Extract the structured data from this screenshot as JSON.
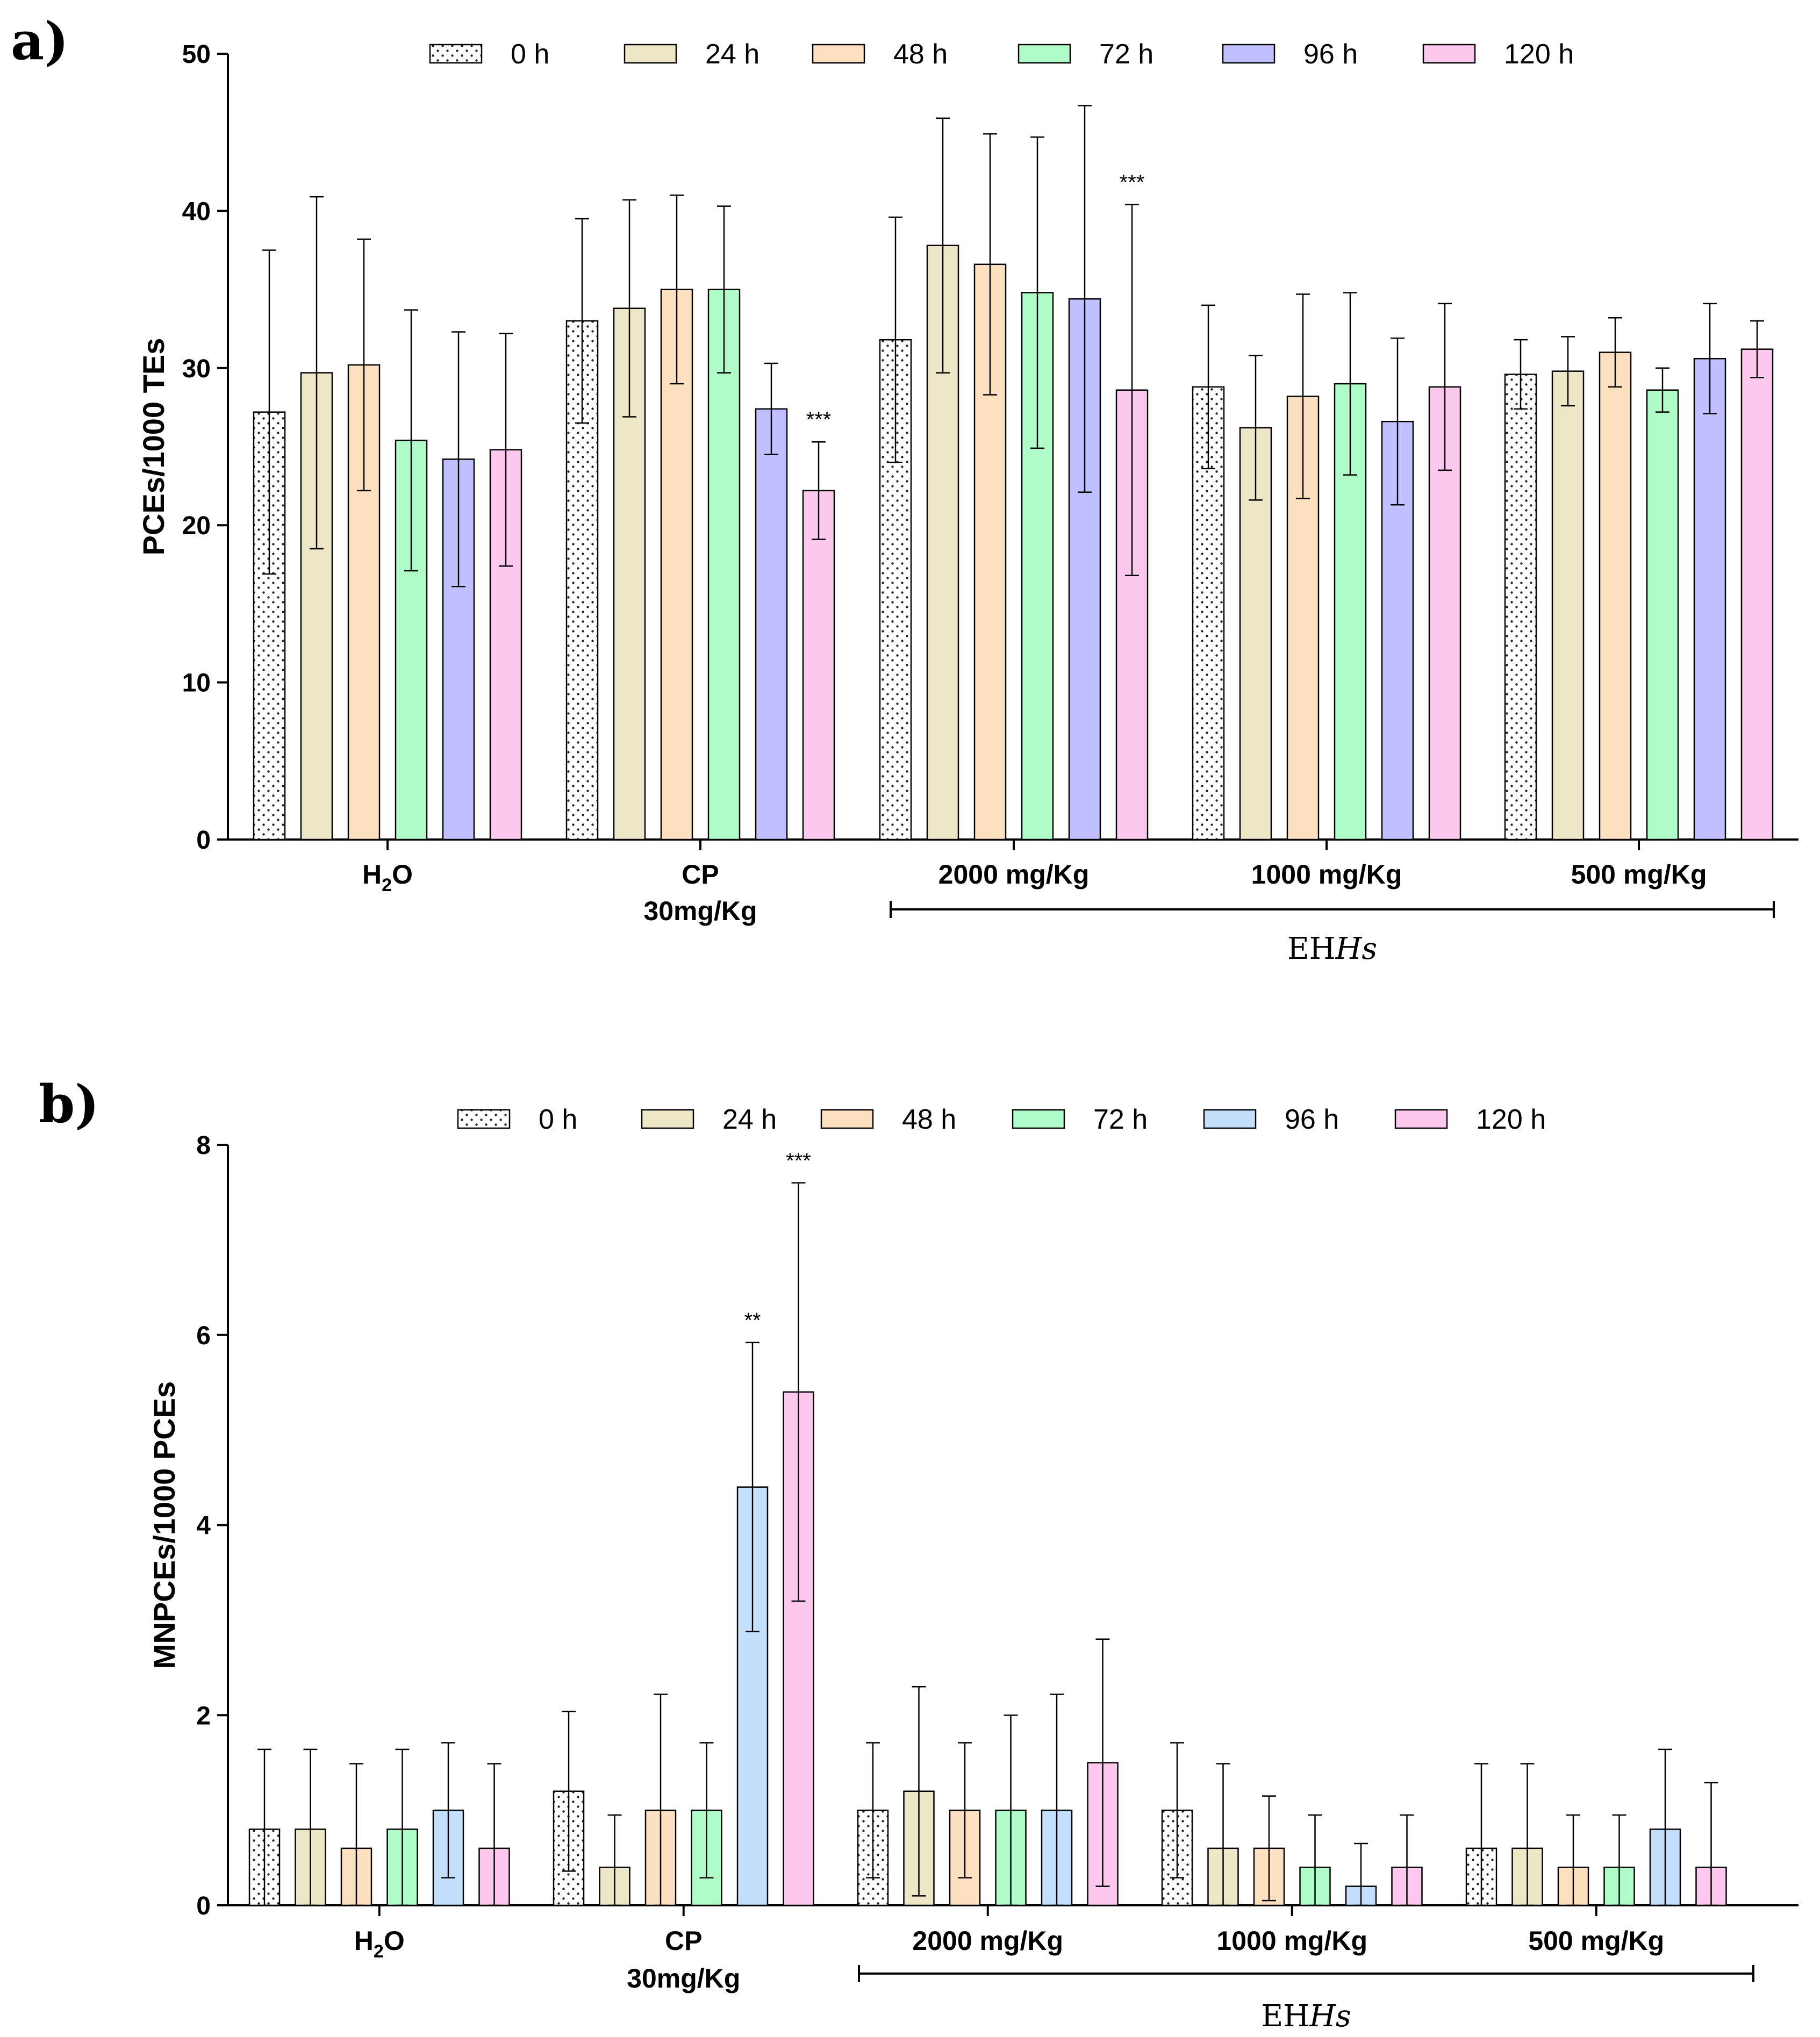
{
  "figure": {
    "series_colors": {
      "0 h": "#ffffff",
      "24 h": "#ede7c8",
      "48 h": "#fde0c0",
      "72 h": "#b0fcc9",
      "96 h a": "#c0c0ff",
      "96 h b": "#c4dffc",
      "120 h": "#fdc8ee"
    },
    "legend_a_48h_color": "#2d4d2d"
  },
  "chart_data": [
    {
      "type": "bar",
      "panel_letter": "a)",
      "ylabel": "PCEs/1000 TEs",
      "ylim": [
        0,
        50
      ],
      "yticks": [
        "0",
        "10",
        "20",
        "30",
        "40",
        "50"
      ],
      "categories": [
        "H2O",
        "CP 30mg/Kg",
        "2000 mg/Kg",
        "1000 mg/Kg",
        "500 mg/Kg"
      ],
      "category_labels": [
        {
          "line1_main": "H",
          "line1_sub": "2",
          "line1_tail": "O",
          "line2": ""
        },
        {
          "line1_main": "CP",
          "line1_sub": "",
          "line1_tail": "",
          "line2": "30mg/Kg"
        },
        {
          "line1_main": "2000 mg/Kg",
          "line1_sub": "",
          "line1_tail": "",
          "line2": ""
        },
        {
          "line1_main": "1000 mg/Kg",
          "line1_sub": "",
          "line1_tail": "",
          "line2": ""
        },
        {
          "line1_main": "500 mg/Kg",
          "line1_sub": "",
          "line1_tail": "",
          "line2": ""
        }
      ],
      "group_bracket": {
        "label_main": "EH",
        "label_italic": "Hs",
        "from_category": 2,
        "to_category": 4
      },
      "series": [
        {
          "name": "0 h",
          "values": [
            27.2,
            33.0,
            31.8,
            28.8,
            29.6
          ],
          "errors": [
            10.3,
            6.5,
            7.8,
            5.2,
            2.2
          ]
        },
        {
          "name": "24 h",
          "values": [
            29.7,
            33.8,
            37.8,
            26.2,
            29.8
          ],
          "errors": [
            11.2,
            6.9,
            8.1,
            4.6,
            2.2
          ]
        },
        {
          "name": "48 h",
          "values": [
            30.2,
            35.0,
            36.6,
            28.2,
            31.0
          ],
          "errors": [
            8.0,
            6.0,
            8.3,
            6.5,
            2.2
          ]
        },
        {
          "name": "72 h",
          "values": [
            25.4,
            35.0,
            34.8,
            29.0,
            28.6
          ],
          "errors": [
            8.3,
            5.3,
            9.9,
            5.8,
            1.4
          ]
        },
        {
          "name": "96 h",
          "values": [
            24.2,
            27.4,
            34.4,
            26.6,
            30.6
          ],
          "errors": [
            8.1,
            2.9,
            12.3,
            5.3,
            3.5
          ]
        },
        {
          "name": "120 h",
          "values": [
            24.8,
            22.2,
            28.6,
            28.8,
            31.2
          ],
          "errors": [
            7.4,
            3.1,
            11.8,
            5.3,
            1.8
          ]
        }
      ],
      "annotations": [
        {
          "text": "***",
          "category": 1,
          "series": 5
        },
        {
          "text": "***",
          "category": 2,
          "series": 5
        }
      ],
      "legend": [
        "0 h",
        "24 h",
        "48 h",
        "72 h",
        "96 h",
        "120 h"
      ],
      "legend_position": "top"
    },
    {
      "type": "bar",
      "panel_letter": "b)",
      "ylabel": "MNPCEs/1000 PCEs",
      "ylim": [
        0,
        8
      ],
      "yticks": [
        "0",
        "2",
        "4",
        "6",
        "8"
      ],
      "categories": [
        "H2O",
        "CP 30mg/Kg",
        "2000 mg/Kg",
        "1000 mg/Kg",
        "500 mg/Kg"
      ],
      "category_labels": [
        {
          "line1_main": "H",
          "line1_sub": "2",
          "line1_tail": "O",
          "line2": ""
        },
        {
          "line1_main": "CP",
          "line1_sub": "",
          "line1_tail": "",
          "line2": "30mg/Kg"
        },
        {
          "line1_main": "2000 mg/Kg",
          "line1_sub": "",
          "line1_tail": "",
          "line2": ""
        },
        {
          "line1_main": "1000 mg/Kg",
          "line1_sub": "",
          "line1_tail": "",
          "line2": ""
        },
        {
          "line1_main": "500 mg/Kg",
          "line1_sub": "",
          "line1_tail": "",
          "line2": ""
        }
      ],
      "group_bracket": {
        "label_main": "EH",
        "label_italic": "Hs",
        "from_category": 2,
        "to_category": 4
      },
      "series": [
        {
          "name": "0 h",
          "values": [
            0.8,
            1.2,
            1.0,
            1.0,
            0.6
          ],
          "errors": [
            0.84,
            0.84,
            0.71,
            0.71,
            0.89
          ]
        },
        {
          "name": "24 h",
          "values": [
            0.8,
            0.4,
            1.2,
            0.6,
            0.6
          ],
          "errors": [
            0.84,
            0.55,
            1.1,
            0.89,
            0.89
          ]
        },
        {
          "name": "48 h",
          "values": [
            0.6,
            1.0,
            1.0,
            0.6,
            0.4
          ],
          "errors": [
            0.89,
            1.22,
            0.71,
            0.55,
            0.55
          ]
        },
        {
          "name": "72 h",
          "values": [
            0.8,
            1.0,
            1.0,
            0.4,
            0.4
          ],
          "errors": [
            0.84,
            0.71,
            1.0,
            0.55,
            0.55
          ]
        },
        {
          "name": "96 h",
          "values": [
            1.0,
            4.4,
            1.0,
            0.2,
            0.8
          ],
          "errors": [
            0.71,
            1.52,
            1.22,
            0.45,
            0.84
          ]
        },
        {
          "name": "120 h",
          "values": [
            0.6,
            5.4,
            1.5,
            0.4,
            0.4
          ],
          "errors": [
            0.89,
            2.2,
            1.3,
            0.55,
            0.89
          ]
        }
      ],
      "annotations": [
        {
          "text": "**",
          "category": 1,
          "series": 4
        },
        {
          "text": "***",
          "category": 1,
          "series": 5
        }
      ],
      "legend": [
        "0 h",
        "24 h",
        "48 h",
        "72 h",
        "96 h",
        "120 h"
      ],
      "legend_position": "top"
    }
  ]
}
